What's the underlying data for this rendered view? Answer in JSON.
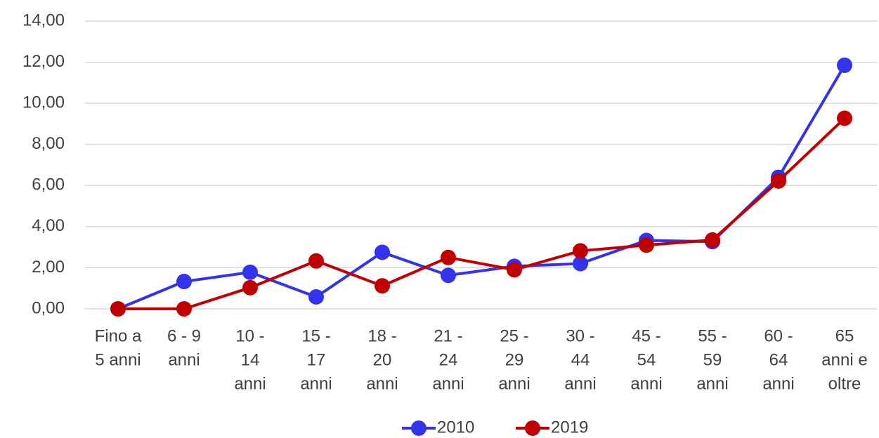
{
  "chart_data": {
    "type": "line",
    "categories": [
      [
        "Fino a",
        "5 anni"
      ],
      [
        "6 - 9",
        "anni"
      ],
      [
        "10 -",
        "14",
        "anni"
      ],
      [
        "15 -",
        "17",
        "anni"
      ],
      [
        "18 -",
        "20",
        "anni"
      ],
      [
        "21 -",
        "24",
        "anni"
      ],
      [
        "25 -",
        "29",
        "anni"
      ],
      [
        "30 -",
        "44",
        "anni"
      ],
      [
        "45 -",
        "54",
        "anni"
      ],
      [
        "55 -",
        "59",
        "anni"
      ],
      [
        "60 -",
        "64",
        "anni"
      ],
      [
        "65",
        "anni e",
        "oltre"
      ]
    ],
    "series": [
      {
        "name": "2010",
        "color": "#3333ee",
        "values": [
          0,
          1.33,
          1.78,
          0.58,
          2.75,
          1.63,
          2.07,
          2.2,
          3.33,
          3.27,
          6.4,
          11.85
        ]
      },
      {
        "name": "2019",
        "color": "#c00000",
        "values": [
          0,
          0,
          1.03,
          2.33,
          1.12,
          2.5,
          1.9,
          2.82,
          3.1,
          3.35,
          6.22,
          9.27
        ]
      }
    ],
    "ylim": [
      0,
      14
    ],
    "yticks": [
      {
        "value": 0,
        "label": "0,00"
      },
      {
        "value": 2,
        "label": "2,00"
      },
      {
        "value": 4,
        "label": "4,00"
      },
      {
        "value": 6,
        "label": "6,00"
      },
      {
        "value": 8,
        "label": "8,00"
      },
      {
        "value": 10,
        "label": "10,00"
      },
      {
        "value": 12,
        "label": "12,00"
      },
      {
        "value": 14,
        "label": "14,00"
      }
    ],
    "grid": true,
    "legend": "bottom"
  }
}
